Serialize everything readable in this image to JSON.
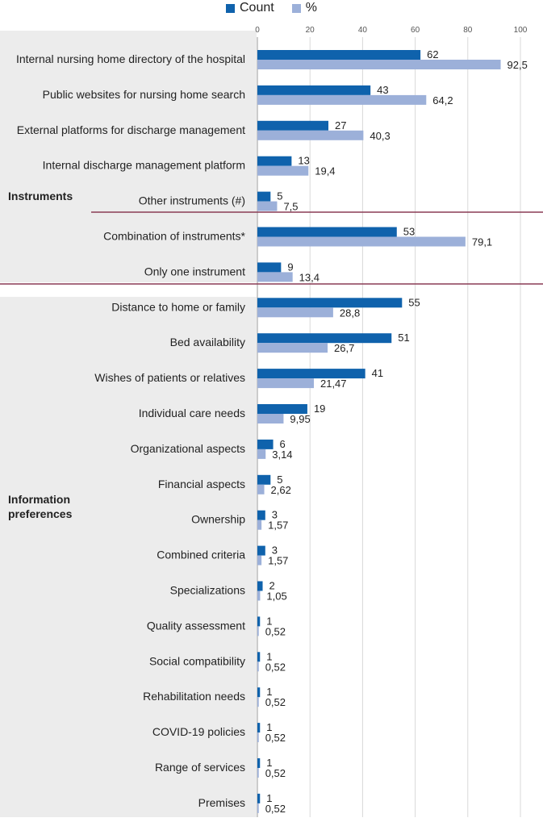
{
  "legend": {
    "count_label": "Count",
    "percent_label": "%"
  },
  "groups": {
    "instruments_label": "Instruments",
    "information_line1": "Information",
    "information_line2": "preferences"
  },
  "colors": {
    "count": "#0f62ac",
    "percent": "#9cb0d9",
    "panel": "#ececec",
    "separator": "#8a3c55",
    "grid": "#d9d9d9"
  },
  "chart_data": {
    "type": "bar",
    "orientation": "horizontal",
    "xlim": [
      0,
      100
    ],
    "xticks": [
      "0",
      "20",
      "40",
      "60",
      "80",
      "100"
    ],
    "legend_position": "top",
    "series": [
      {
        "name": "Count",
        "key": "count"
      },
      {
        "name": "%",
        "key": "percent"
      }
    ],
    "rows": [
      {
        "label": "Internal nursing home directory of the hospital",
        "count": 62,
        "percent": 92.5,
        "count_text": "62",
        "percent_text": "92,5"
      },
      {
        "label": "Public websites for nursing home search",
        "count": 43,
        "percent": 64.2,
        "count_text": "43",
        "percent_text": "64,2"
      },
      {
        "label": "External platforms for discharge management",
        "count": 27,
        "percent": 40.3,
        "count_text": "27",
        "percent_text": "40,3"
      },
      {
        "label": "Internal discharge management platform",
        "count": 13,
        "percent": 19.4,
        "count_text": "13",
        "percent_text": "19,4"
      },
      {
        "label": "Other instruments (#)",
        "count": 5,
        "percent": 7.5,
        "count_text": "5",
        "percent_text": "7,5"
      },
      {
        "label": "Combination of instruments*",
        "count": 53,
        "percent": 79.1,
        "count_text": "53",
        "percent_text": "79,1"
      },
      {
        "label": "Only one instrument",
        "count": 9,
        "percent": 13.4,
        "count_text": "9",
        "percent_text": "13,4"
      },
      {
        "label": "Distance to home or family",
        "count": 55,
        "percent": 28.8,
        "count_text": "55",
        "percent_text": "28,8"
      },
      {
        "label": "Bed availability",
        "count": 51,
        "percent": 26.7,
        "count_text": "51",
        "percent_text": "26,7"
      },
      {
        "label": "Wishes of patients or relatives",
        "count": 41,
        "percent": 21.47,
        "count_text": "41",
        "percent_text": "21,47"
      },
      {
        "label": "Individual care needs",
        "count": 19,
        "percent": 9.95,
        "count_text": "19",
        "percent_text": "9,95"
      },
      {
        "label": "Organizational aspects",
        "count": 6,
        "percent": 3.14,
        "count_text": "6",
        "percent_text": "3,14"
      },
      {
        "label": "Financial aspects",
        "count": 5,
        "percent": 2.62,
        "count_text": "5",
        "percent_text": "2,62"
      },
      {
        "label": "Ownership",
        "count": 3,
        "percent": 1.57,
        "count_text": "3",
        "percent_text": "1,57"
      },
      {
        "label": "Combined criteria",
        "count": 3,
        "percent": 1.57,
        "count_text": "3",
        "percent_text": "1,57"
      },
      {
        "label": "Specializations",
        "count": 2,
        "percent": 1.05,
        "count_text": "2",
        "percent_text": "1,05"
      },
      {
        "label": "Quality assessment",
        "count": 1,
        "percent": 0.52,
        "count_text": "1",
        "percent_text": "0,52"
      },
      {
        "label": "Social compatibility",
        "count": 1,
        "percent": 0.52,
        "count_text": "1",
        "percent_text": "0,52"
      },
      {
        "label": "Rehabilitation needs",
        "count": 1,
        "percent": 0.52,
        "count_text": "1",
        "percent_text": "0,52"
      },
      {
        "label": "COVID-19 policies",
        "count": 1,
        "percent": 0.52,
        "count_text": "1",
        "percent_text": "0,52"
      },
      {
        "label": "Range of services",
        "count": 1,
        "percent": 0.52,
        "count_text": "1",
        "percent_text": "0,52"
      },
      {
        "label": "Premises",
        "count": 1,
        "percent": 0.52,
        "count_text": "1",
        "percent_text": "0,52"
      }
    ]
  }
}
